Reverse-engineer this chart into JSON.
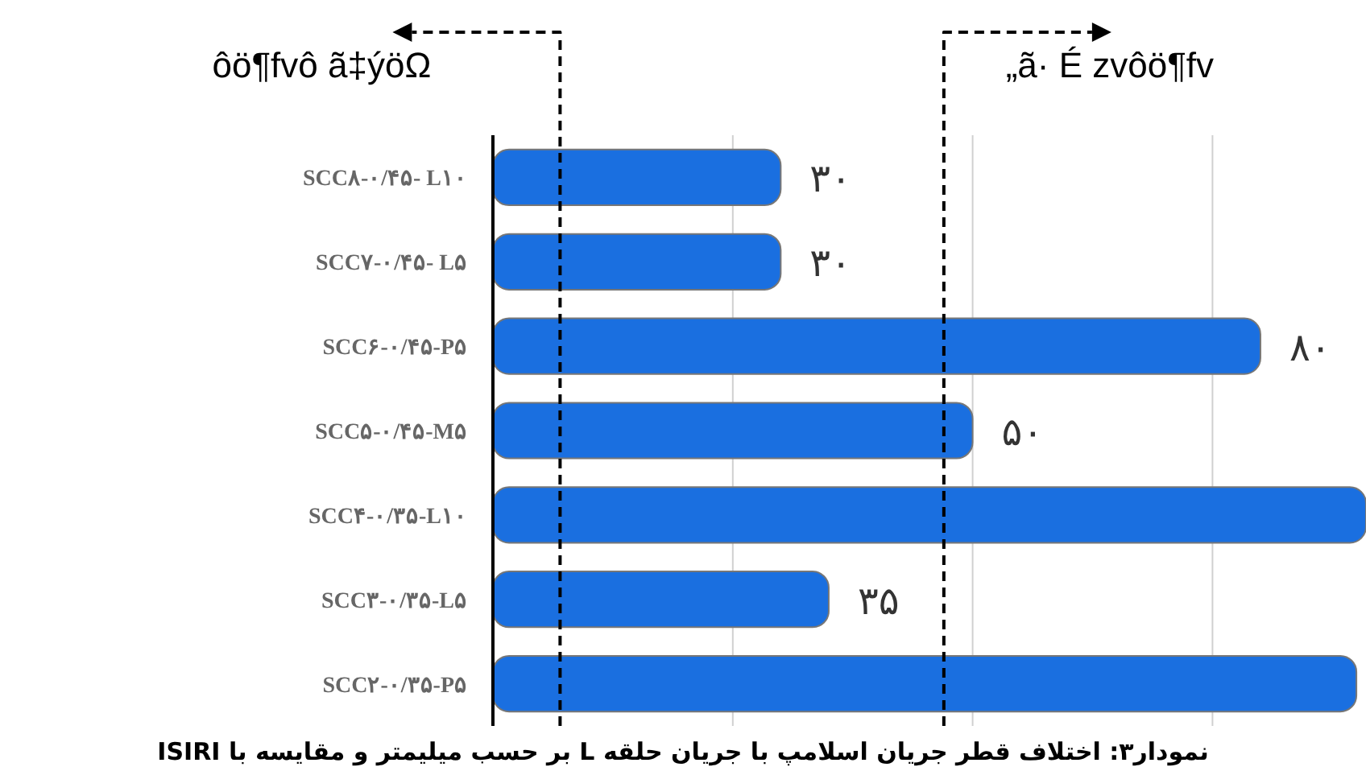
{
  "chart_data": {
    "type": "bar",
    "orientation": "horizontal",
    "title": "نمودار۳: اختلاف قطر جریان اسلامپ با جریان حلقه L بر حسب میلیمتر و مقایسه با ISIRI",
    "categories": [
      "SCC۸-۰/۴۵- L۱۰",
      "SCC۷-۰/۴۵- L۵",
      "SCC۶-۰/۴۵-P۵",
      "SCC۵-۰/۴۵-M۵",
      "SCC۴-۰/۳۵-L۱۰",
      "SCC۳-۰/۳۵-L۵",
      "SCC۲-۰/۳۵-P۵"
    ],
    "values": [
      30,
      30,
      80,
      50,
      91,
      35,
      90
    ],
    "value_labels": [
      "۳۰",
      "۳۰",
      "۸۰",
      "۵۰",
      null,
      "۳۵",
      null
    ],
    "color": "#1a6fe0",
    "xlim": [
      0,
      91
    ],
    "xticks": [
      {
        "value": 0,
        "label": null
      },
      {
        "value": 25,
        "label": null
      },
      {
        "value": 50,
        "label": null
      },
      {
        "value": 75,
        "label": null
      }
    ],
    "grid": "x",
    "ref_lines": [
      {
        "axis": "x",
        "value": 7,
        "label": "ôö¶fvô ã‡ýöΩ",
        "line_style": "dashed",
        "color": "#000000"
      },
      {
        "axis": "x",
        "value": 47,
        "label": "„ã· É zvôö¶fv",
        "line_style": "dashed",
        "color": "#000000"
      }
    ]
  }
}
